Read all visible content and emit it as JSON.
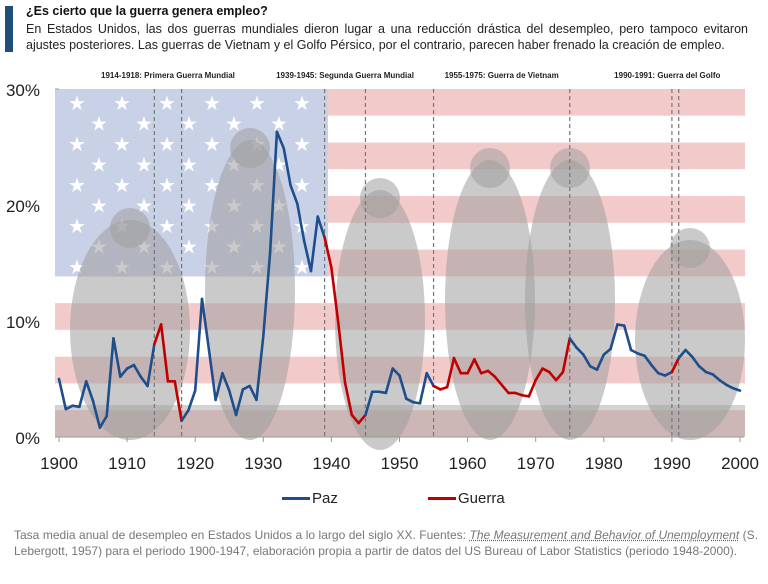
{
  "header": {
    "title": "¿Es cierto que la guerra genera empleo?",
    "subtitle": "En Estados Unidos, las dos guerras mundiales dieron lugar a una reducción drástica del desempleo, pero tampoco evitaron ajustes posteriores. Las guerras de Vietnam y el Golfo Pérsico, por el contrario, parecen haber frenado la creación de empleo."
  },
  "chart_data": {
    "type": "line",
    "xlim": [
      1900,
      2000
    ],
    "ylim": [
      0,
      30
    ],
    "y_ticks": [
      "0%",
      "10%",
      "20%",
      "30%"
    ],
    "x_ticks": [
      "1900",
      "1910",
      "1920",
      "1930",
      "1940",
      "1950",
      "1960",
      "1970",
      "1980",
      "1990",
      "2000"
    ],
    "legend_position": "bottom",
    "colors": {
      "Paz": "#1f4e8c",
      "Guerra": "#c00000"
    },
    "legend": [
      "Paz",
      "Guerra"
    ],
    "war_periods": [
      {
        "label": "1914-1918: Primera Guerra Mundial",
        "start": 1914,
        "end": 1918
      },
      {
        "label": "1939-1945: Segunda Guerra Mundial",
        "start": 1939,
        "end": 1945
      },
      {
        "label": "1955-1975: Guerra de Vietnam",
        "start": 1955,
        "end": 1975
      },
      {
        "label": "1990-1991: Guerra del Golfo",
        "start": 1990,
        "end": 1991
      }
    ],
    "x": [
      1900,
      1901,
      1902,
      1903,
      1904,
      1905,
      1906,
      1907,
      1908,
      1909,
      1910,
      1911,
      1912,
      1913,
      1914,
      1915,
      1916,
      1917,
      1918,
      1919,
      1920,
      1921,
      1922,
      1923,
      1924,
      1925,
      1926,
      1927,
      1928,
      1929,
      1930,
      1931,
      1932,
      1933,
      1934,
      1935,
      1936,
      1937,
      1938,
      1939,
      1940,
      1941,
      1942,
      1943,
      1944,
      1945,
      1946,
      1947,
      1948,
      1949,
      1950,
      1951,
      1952,
      1953,
      1954,
      1955,
      1956,
      1957,
      1958,
      1959,
      1960,
      1961,
      1962,
      1963,
      1964,
      1965,
      1966,
      1967,
      1968,
      1969,
      1970,
      1971,
      1972,
      1973,
      1974,
      1975,
      1976,
      1977,
      1978,
      1979,
      1980,
      1981,
      1982,
      1983,
      1984,
      1985,
      1986,
      1987,
      1988,
      1989,
      1990,
      1991,
      1992,
      1993,
      1994,
      1995,
      1996,
      1997,
      1998,
      1999,
      2000
    ],
    "y": [
      5.0,
      2.4,
      2.7,
      2.6,
      4.8,
      3.1,
      0.8,
      1.8,
      8.5,
      5.2,
      5.9,
      6.2,
      5.2,
      4.4,
      8.0,
      9.7,
      4.8,
      4.8,
      1.4,
      2.3,
      4.0,
      11.9,
      7.6,
      3.2,
      5.5,
      4.0,
      1.9,
      4.1,
      4.4,
      3.2,
      8.7,
      15.9,
      26.3,
      24.9,
      21.7,
      20.1,
      16.9,
      14.3,
      19.0,
      17.2,
      14.6,
      9.9,
      4.7,
      1.9,
      1.2,
      1.9,
      3.9,
      3.9,
      3.8,
      5.9,
      5.3,
      3.3,
      3.0,
      2.9,
      5.5,
      4.4,
      4.1,
      4.3,
      6.8,
      5.5,
      5.5,
      6.7,
      5.5,
      5.7,
      5.2,
      4.5,
      3.8,
      3.8,
      3.6,
      3.5,
      4.9,
      5.9,
      5.6,
      4.9,
      5.6,
      8.5,
      7.7,
      7.1,
      6.1,
      5.8,
      7.1,
      7.6,
      9.7,
      9.6,
      7.5,
      7.2,
      7.0,
      6.2,
      5.5,
      5.3,
      5.6,
      6.8,
      7.5,
      6.9,
      6.1,
      5.6,
      5.4,
      4.9,
      4.5,
      4.2,
      4.0
    ]
  },
  "footer": {
    "p1": "Tasa media anual de desempleo en Estados Unidos a lo largo del siglo XX. Fuentes: ",
    "book": "The Measurement and Behavior of Unemployment",
    "p2": " (S. Lebergott, 1957) para el periodo 1900-1947, elaboración propia a partir de datos del US Bureau of Labor Statistics (periodo 1948-2000)."
  }
}
